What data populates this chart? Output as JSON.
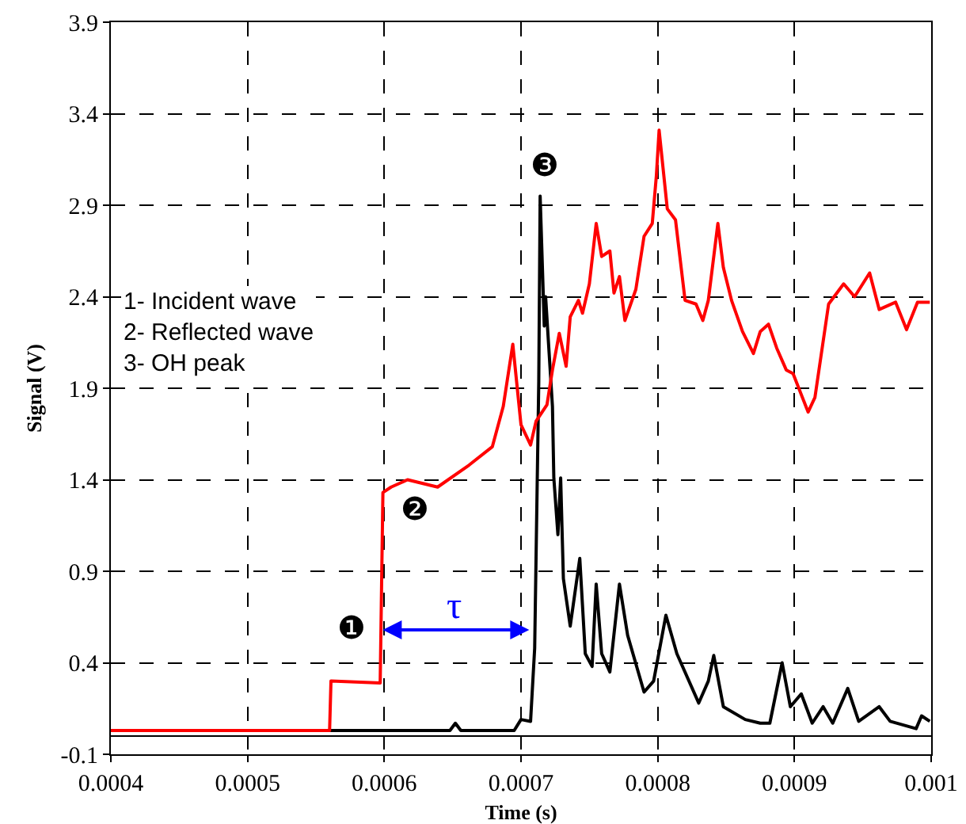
{
  "chart_data": {
    "type": "line",
    "xlabel": "Time (s)",
    "ylabel": "Signal (V)",
    "xlim": [
      0.0004,
      0.001
    ],
    "xticks": [
      0.0004,
      0.0005,
      0.0006,
      0.0007,
      0.0008,
      0.0009,
      0.001
    ],
    "ylim": [
      -0.1,
      3.9
    ],
    "yticks": [
      -0.1,
      0.4,
      0.9,
      1.4,
      1.9,
      2.4,
      2.9,
      3.4,
      3.9
    ],
    "grid": true,
    "marker": "none",
    "line_style": "solid",
    "ref_lines": [
      {
        "axis": "y",
        "value": 0,
        "color": "#000000"
      }
    ],
    "annotations": [
      "1- Incident wave\n2- Reflected wave\n3- OH peak",
      "❶",
      "❷",
      "❸",
      {
        "text": "τ",
        "x": 0.000706,
        "y": 0.58
      }
    ],
    "series": [
      {
        "color": "#ff0000",
        "x": [
          0.0004,
          0.00056,
          0.000561,
          0.000597,
          0.000599,
          0.000605,
          0.000617,
          0.000639,
          0.000662,
          0.000679,
          0.000687,
          0.000694,
          0.0007,
          0.000707,
          0.000711,
          0.000719,
          0.000723,
          0.000728,
          0.000733,
          0.000736,
          0.000742,
          0.000745,
          0.00075,
          0.000755,
          0.000759,
          0.000765,
          0.000768,
          0.000772,
          0.000776,
          0.000784,
          0.00079,
          0.000796,
          0.000799,
          0.000801,
          0.000807,
          0.000813,
          0.00082,
          0.000828,
          0.000833,
          0.000837,
          0.000844,
          0.000848,
          0.000854,
          0.000862,
          0.00087,
          0.000875,
          0.000881,
          0.000887,
          0.000894,
          0.000899,
          0.00091,
          0.000915,
          0.000925,
          0.000936,
          0.000944,
          0.000955,
          0.000962,
          0.000974,
          0.000982,
          0.00099,
          0.000999
        ],
        "values": [
          0.03,
          0.03,
          0.3,
          0.29,
          1.33,
          1.36,
          1.4,
          1.36,
          1.48,
          1.58,
          1.8,
          2.14,
          1.7,
          1.59,
          1.72,
          1.81,
          2.0,
          2.2,
          2.02,
          2.29,
          2.38,
          2.31,
          2.47,
          2.8,
          2.62,
          2.65,
          2.42,
          2.51,
          2.27,
          2.44,
          2.73,
          2.8,
          3.06,
          3.31,
          2.88,
          2.82,
          2.38,
          2.36,
          2.27,
          2.38,
          2.8,
          2.56,
          2.38,
          2.21,
          2.09,
          2.21,
          2.25,
          2.12,
          2.0,
          1.98,
          1.77,
          1.85,
          2.36,
          2.47,
          2.4,
          2.53,
          2.33,
          2.37,
          2.22,
          2.37,
          2.37
        ]
      },
      {
        "color": "#000000",
        "x": [
          0.0004,
          0.000648,
          0.000652,
          0.000656,
          0.000695,
          0.0007,
          0.000707,
          0.00071,
          0.000713,
          0.000714,
          0.000717,
          0.000718,
          0.000723,
          0.000724,
          0.000727,
          0.000729,
          0.000731,
          0.000736,
          0.000743,
          0.000747,
          0.000752,
          0.000755,
          0.000759,
          0.000765,
          0.000772,
          0.000778,
          0.00079,
          0.000797,
          0.000806,
          0.000814,
          0.00083,
          0.000837,
          0.000841,
          0.000848,
          0.000864,
          0.000875,
          0.000882,
          0.000891,
          0.000897,
          0.000905,
          0.000913,
          0.000921,
          0.000928,
          0.000939,
          0.000947,
          0.000962,
          0.00097,
          0.000989,
          0.000993,
          0.000999
        ],
        "values": [
          0.03,
          0.03,
          0.07,
          0.03,
          0.03,
          0.09,
          0.08,
          0.48,
          1.94,
          2.95,
          2.24,
          2.4,
          1.8,
          1.41,
          1.1,
          1.41,
          0.86,
          0.6,
          0.97,
          0.45,
          0.38,
          0.83,
          0.45,
          0.35,
          0.83,
          0.55,
          0.24,
          0.3,
          0.66,
          0.45,
          0.18,
          0.3,
          0.44,
          0.16,
          0.09,
          0.07,
          0.07,
          0.4,
          0.16,
          0.23,
          0.07,
          0.16,
          0.07,
          0.26,
          0.08,
          0.16,
          0.08,
          0.04,
          0.11,
          0.08
        ]
      }
    ]
  }
}
